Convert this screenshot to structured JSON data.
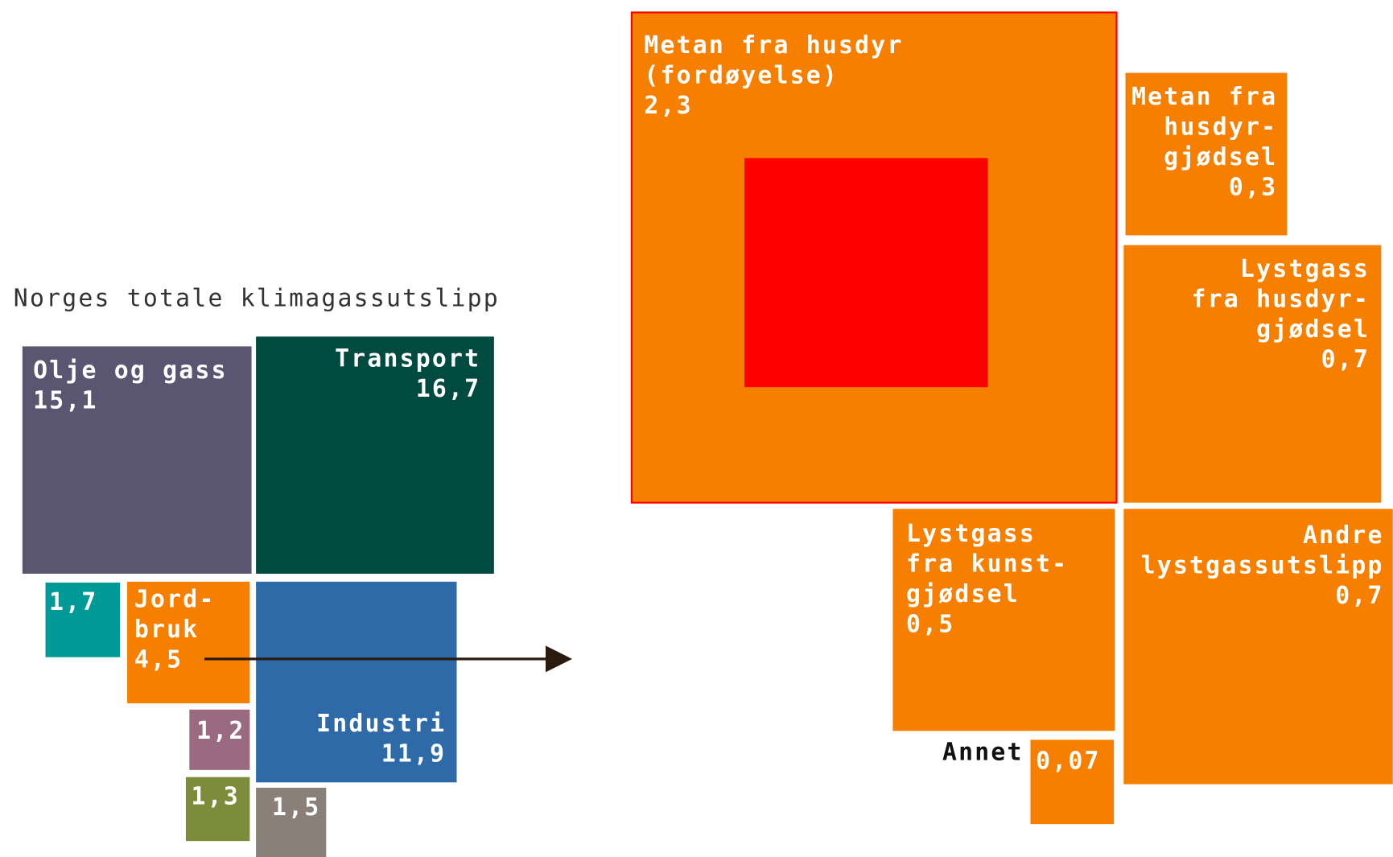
{
  "title": "Norges totale klimagassutslipp",
  "nodes": [
    {
      "lines": [
        "Olje og gass"
      ],
      "value": "15,1"
    },
    {
      "lines": [
        "Transport"
      ],
      "value": "16,7"
    },
    {
      "lines": [],
      "value": "1,7"
    },
    {
      "lines": [
        "Jord-",
        "bruk"
      ],
      "value": "4,5"
    },
    {
      "lines": [
        "Industri"
      ],
      "value": "11,9"
    },
    {
      "lines": [],
      "value": "1,2"
    },
    {
      "lines": [],
      "value": "1,3"
    },
    {
      "lines": [],
      "value": "1,5"
    },
    {
      "lines": [
        "Metan fra husdyr",
        "(fordøyelse)"
      ],
      "value": "2,3"
    },
    {
      "lines": [
        "Metan fra",
        "husdyr-",
        "gjødsel"
      ],
      "value": "0,3"
    },
    {
      "lines": [
        "Lystgass",
        "fra husdyr-",
        "gjødsel"
      ],
      "value": "0,7"
    },
    {
      "lines": [
        "Lystgass",
        "fra kunst-",
        "gjødsel"
      ],
      "value": "0,5"
    },
    {
      "lines": [
        "Andre",
        "lystgassutslipp"
      ],
      "value": "0,7"
    },
    {
      "lines": [
        "Annet"
      ],
      "value": "0,07"
    }
  ]
}
